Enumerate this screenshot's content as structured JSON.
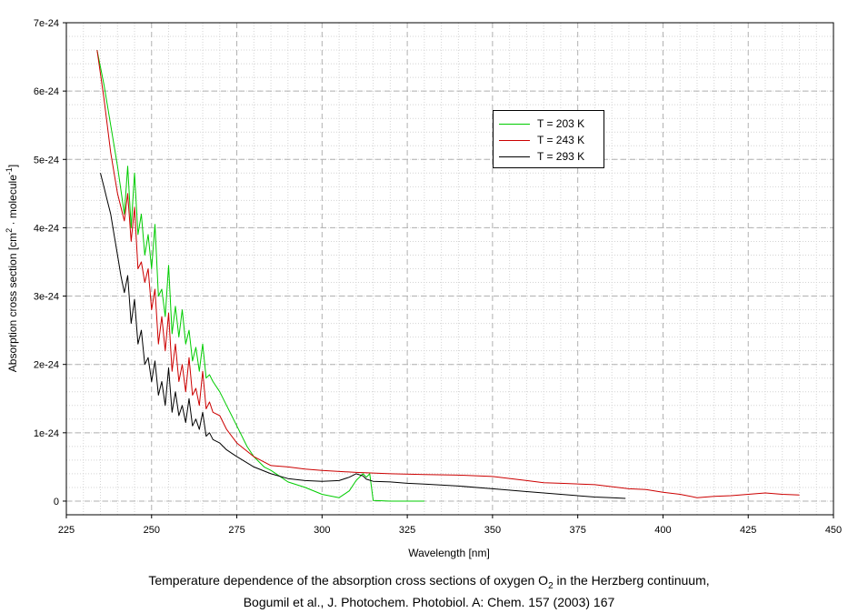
{
  "chart_data": {
    "type": "line",
    "xlabel": "Wavelength [nm]",
    "ylabel": {
      "prefix": "Absorption cross section [cm",
      "sup1": "2",
      "mid": " · molecule",
      "sup2": "-1",
      "suffix": "]"
    },
    "xlim": [
      225,
      450
    ],
    "ylim": [
      -2e-25,
      7e-24
    ],
    "x_ticks": [
      225,
      250,
      275,
      300,
      325,
      350,
      375,
      400,
      425,
      450
    ],
    "y_ticks": [
      0,
      1e-24,
      2e-24,
      3e-24,
      4e-24,
      5e-24,
      6e-24,
      7e-24
    ],
    "x_tick_labels": [
      "225",
      "250",
      "275",
      "300",
      "325",
      "350",
      "375",
      "400",
      "425",
      "450"
    ],
    "y_tick_labels": [
      "0",
      "1e-24",
      "2e-24",
      "3e-24",
      "4e-24",
      "5e-24",
      "6e-24",
      "7e-24"
    ],
    "grid": true,
    "legend_position": "upper-right",
    "series": [
      {
        "name": "T = 203 K",
        "color": "#00cc00",
        "x": [
          234,
          236,
          238,
          240,
          242,
          243,
          244,
          245,
          246,
          247,
          248,
          249,
          250,
          251,
          252,
          253,
          254,
          255,
          256,
          257,
          258,
          259,
          260,
          261,
          262,
          263,
          264,
          265,
          266,
          267,
          268,
          270,
          272,
          275,
          278,
          280,
          283,
          285,
          288,
          290,
          295,
          300,
          305,
          308,
          310,
          312,
          313,
          314,
          315,
          320,
          325,
          330
        ],
        "y": [
          6.6e-24,
          6.1e-24,
          5.5e-24,
          4.9e-24,
          4.2e-24,
          4.9e-24,
          4e-24,
          4.8e-24,
          3.9e-24,
          4.2e-24,
          3.6e-24,
          3.9e-24,
          3.4e-24,
          4.05e-24,
          3e-24,
          3.1e-24,
          2.7e-24,
          3.45e-24,
          2.45e-24,
          2.85e-24,
          2.4e-24,
          2.8e-24,
          2.3e-24,
          2.5e-24,
          2.05e-24,
          2.25e-24,
          1.9e-24,
          2.3e-24,
          1.8e-24,
          1.85e-24,
          1.75e-24,
          1.6e-24,
          1.4e-24,
          1.1e-24,
          8e-25,
          6.5e-25,
          5e-25,
          4.5e-25,
          3.5e-25,
          2.8e-25,
          2e-25,
          1e-25,
          5e-26,
          1.5e-25,
          3e-25,
          4e-25,
          3.5e-25,
          4e-25,
          1e-26,
          0.0,
          0.0,
          0.0
        ]
      },
      {
        "name": "T = 243 K",
        "color": "#cc0000",
        "x": [
          234,
          236,
          238,
          240,
          242,
          243,
          244,
          245,
          246,
          247,
          248,
          249,
          250,
          251,
          252,
          253,
          254,
          255,
          256,
          257,
          258,
          259,
          260,
          261,
          262,
          263,
          264,
          265,
          266,
          267,
          268,
          270,
          272,
          275,
          280,
          285,
          290,
          295,
          300,
          310,
          320,
          330,
          340,
          350,
          360,
          365,
          370,
          380,
          390,
          395,
          400,
          405,
          410,
          415,
          420,
          425,
          430,
          435,
          440
        ],
        "y": [
          6.6e-24,
          5.9e-24,
          5.1e-24,
          4.5e-24,
          4.1e-24,
          4.5e-24,
          3.8e-24,
          4.3e-24,
          3.4e-24,
          3.5e-24,
          3.2e-24,
          3.4e-24,
          2.8e-24,
          3.1e-24,
          2.3e-24,
          2.7e-24,
          2.2e-24,
          2.75e-24,
          1.9e-24,
          2.3e-24,
          1.75e-24,
          2e-24,
          1.6e-24,
          2.1e-24,
          1.55e-24,
          1.65e-24,
          1.4e-24,
          1.9e-24,
          1.35e-24,
          1.45e-24,
          1.3e-24,
          1.25e-24,
          1.05e-24,
          8.5e-25,
          6.5e-25,
          5.2e-25,
          5e-25,
          4.7e-25,
          4.5e-25,
          4.2e-25,
          4e-25,
          3.9e-25,
          3.8e-25,
          3.6e-25,
          3e-25,
          2.7e-25,
          2.6e-25,
          2.4e-25,
          1.8e-25,
          1.7e-25,
          1.3e-25,
          1e-25,
          5e-26,
          7e-26,
          8e-26,
          1e-25,
          1.2e-25,
          1e-25,
          9e-26
        ]
      },
      {
        "name": "T = 293 K",
        "color": "#000000",
        "x": [
          235,
          236,
          237,
          238,
          239,
          240,
          241,
          242,
          243,
          244,
          245,
          246,
          247,
          248,
          249,
          250,
          251,
          252,
          253,
          254,
          255,
          256,
          257,
          258,
          259,
          260,
          261,
          262,
          263,
          264,
          265,
          266,
          267,
          268,
          270,
          272,
          275,
          280,
          285,
          290,
          295,
          300,
          305,
          308,
          310,
          312,
          313,
          315,
          320,
          325,
          330,
          340,
          350,
          360,
          370,
          380,
          385,
          389
        ],
        "y": [
          4.8e-24,
          4.6e-24,
          4.4e-24,
          4.2e-24,
          3.9e-24,
          3.6e-24,
          3.3e-24,
          3.05e-24,
          3.3e-24,
          2.6e-24,
          2.95e-24,
          2.3e-24,
          2.5e-24,
          2e-24,
          2.1e-24,
          1.75e-24,
          2.05e-24,
          1.55e-24,
          1.75e-24,
          1.4e-24,
          1.95e-24,
          1.3e-24,
          1.6e-24,
          1.25e-24,
          1.4e-24,
          1.15e-24,
          1.5e-24,
          1.1e-24,
          1.2e-24,
          1.05e-24,
          1.3e-24,
          9.5e-25,
          1e-24,
          9e-25,
          8.5e-25,
          7.5e-25,
          6.5e-25,
          5e-25,
          4e-25,
          3.3e-25,
          3e-25,
          2.9e-25,
          3e-25,
          3.5e-25,
          4e-25,
          3.7e-25,
          3.2e-25,
          2.9e-25,
          2.8e-25,
          2.6e-25,
          2.5e-25,
          2.2e-25,
          1.8e-25,
          1.4e-25,
          1e-25,
          6e-26,
          5e-26,
          4e-26
        ]
      }
    ]
  },
  "caption": {
    "line1_prefix": "Temperature dependence of the absorption cross sections of oxygen O",
    "line1_sub": "2",
    "line1_suffix": " in the Herzberg continuum,",
    "line2": "Bogumil et al., J. Photochem. Photobiol. A: Chem. 157 (2003) 167"
  }
}
